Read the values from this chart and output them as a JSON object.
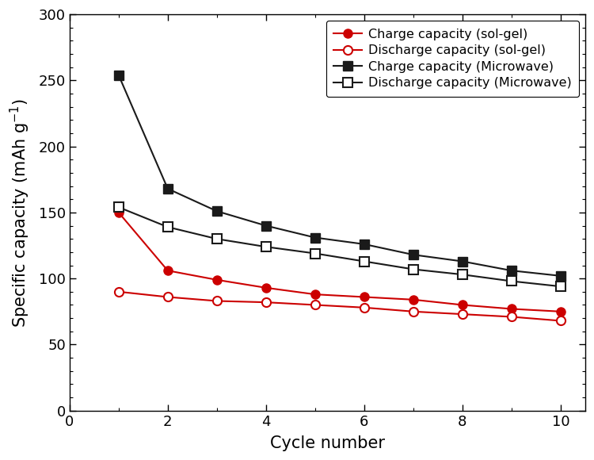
{
  "cycles": [
    1,
    2,
    3,
    4,
    5,
    6,
    7,
    8,
    9,
    10
  ],
  "charge_solgel": [
    150,
    106,
    99,
    93,
    88,
    86,
    84,
    80,
    77,
    75
  ],
  "discharge_solgel": [
    90,
    86,
    83,
    82,
    80,
    78,
    75,
    73,
    71,
    68
  ],
  "charge_microwave": [
    254,
    168,
    151,
    140,
    131,
    126,
    118,
    113,
    106,
    102
  ],
  "discharge_microwave": [
    154,
    139,
    130,
    124,
    119,
    113,
    107,
    103,
    98,
    94
  ],
  "charge_solgel_color": "#cc0000",
  "discharge_solgel_color": "#cc0000",
  "charge_microwave_color": "#1a1a1a",
  "discharge_microwave_color": "#1a1a1a",
  "xlabel": "Cycle number",
  "xlim": [
    0,
    10.5
  ],
  "ylim": [
    0,
    300
  ],
  "yticks": [
    0,
    50,
    100,
    150,
    200,
    250,
    300
  ],
  "xticks": [
    0,
    2,
    4,
    6,
    8,
    10
  ],
  "legend_labels": [
    "Charge capacity (sol-gel)",
    "Discharge capacity (sol-gel)",
    "Charge capacity (Microwave)",
    "Discharge capacity (Microwave)"
  ],
  "marker_size": 8,
  "line_width": 1.5,
  "figwidth": 7.5,
  "figheight": 5.8
}
